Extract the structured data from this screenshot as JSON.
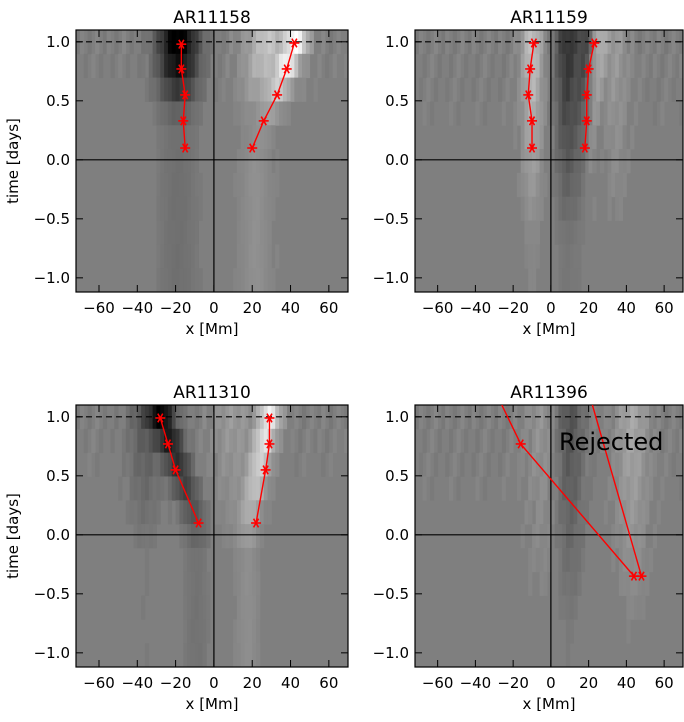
{
  "chart_data": [
    {
      "type": "scatter",
      "title": "AR11158",
      "xlabel": "x [Mm]",
      "ylabel": "time [days]",
      "xlim": [
        -72,
        70
      ],
      "ylim": [
        -1.12,
        1.1
      ],
      "xticks": [
        -60,
        -40,
        -20,
        0,
        20,
        40,
        60
      ],
      "yticks": [
        -1.0,
        -0.5,
        0.0,
        0.5,
        1.0
      ],
      "xtick_labels": [
        "−60",
        "−40",
        "−20",
        "0",
        "20",
        "40",
        "60"
      ],
      "ytick_labels": [
        "−1.0",
        "−0.5",
        "0.0",
        "0.5",
        "1.0"
      ],
      "hline_dashed": 1.0,
      "annotation": "",
      "series": [
        {
          "color": "#ff0000",
          "points": [
            [
              -15,
              0.1
            ],
            [
              -16,
              0.33
            ],
            [
              -15,
              0.55
            ],
            [
              -17,
              0.77
            ],
            [
              -17,
              0.98
            ]
          ]
        },
        {
          "color": "#ff0000",
          "points": [
            [
              20,
              0.1
            ],
            [
              26,
              0.33
            ],
            [
              33,
              0.55
            ],
            [
              38,
              0.77
            ],
            [
              42,
              0.99
            ]
          ]
        }
      ],
      "background": {
        "bands": [
          {
            "x": -17,
            "w": 7,
            "a": -0.85
          },
          {
            "x": -24,
            "w": 6,
            "a": -0.3
          },
          {
            "x": 30,
            "w": 11,
            "a": 0.3
          }
        ],
        "drift": [
          {
            "x0": 22,
            "x1": 43,
            "w": 4,
            "a": 0.85
          },
          {
            "x0": 14,
            "x1": 27,
            "w": 5,
            "a": 0.25
          }
        ],
        "fade": [
          0.25,
          0.9
        ]
      }
    },
    {
      "type": "scatter",
      "title": "AR11159",
      "xlabel": "x [Mm]",
      "ylabel": "",
      "xlim": [
        -72,
        70
      ],
      "ylim": [
        -1.12,
        1.1
      ],
      "xticks": [
        -60,
        -40,
        -20,
        0,
        20,
        40,
        60
      ],
      "yticks": [
        -1.0,
        -0.5,
        0.0,
        0.5,
        1.0
      ],
      "xtick_labels": [
        "−60",
        "−40",
        "−20",
        "0",
        "20",
        "40",
        "60"
      ],
      "ytick_labels": [
        "−1.0",
        "−0.5",
        "0.0",
        "0.5",
        "1.0"
      ],
      "hline_dashed": 1.0,
      "annotation": "",
      "series": [
        {
          "color": "#ff0000",
          "points": [
            [
              -10,
              0.1
            ],
            [
              -10,
              0.33
            ],
            [
              -12,
              0.55
            ],
            [
              -11,
              0.77
            ],
            [
              -9,
              0.99
            ]
          ]
        },
        {
          "color": "#ff0000",
          "points": [
            [
              18,
              0.1
            ],
            [
              19,
              0.33
            ],
            [
              19,
              0.55
            ],
            [
              20,
              0.77
            ],
            [
              23,
              0.99
            ]
          ]
        }
      ],
      "background": {
        "bands": [
          {
            "x": -10,
            "w": 4,
            "a": 0.5
          },
          {
            "x": 8,
            "w": 4,
            "a": -0.55
          },
          {
            "x": 19,
            "w": 5,
            "a": -0.45
          },
          {
            "x": 34,
            "w": 5,
            "a": 0.2
          }
        ],
        "drift": [
          {
            "x0": 21,
            "x1": 25,
            "w": 3,
            "a": 0.55
          }
        ],
        "fade": [
          -0.9,
          0.9
        ]
      }
    },
    {
      "type": "scatter",
      "title": "AR11310",
      "xlabel": "x [Mm]",
      "ylabel": "time [days]",
      "xlim": [
        -72,
        70
      ],
      "ylim": [
        -1.12,
        1.1
      ],
      "xticks": [
        -60,
        -40,
        -20,
        0,
        20,
        40,
        60
      ],
      "yticks": [
        -1.0,
        -0.5,
        0.0,
        0.5,
        1.0
      ],
      "xtick_labels": [
        "−60",
        "−40",
        "−20",
        "0",
        "20",
        "40",
        "60"
      ],
      "ytick_labels": [
        "−1.0",
        "−0.5",
        "0.0",
        "0.5",
        "1.0"
      ],
      "hline_dashed": 1.0,
      "annotation": "",
      "series": [
        {
          "color": "#ff0000",
          "points": [
            [
              -8,
              0.1
            ],
            [
              -20,
              0.55
            ],
            [
              -24,
              0.77
            ],
            [
              -28,
              0.99
            ]
          ]
        },
        {
          "color": "#ff0000",
          "points": [
            [
              22,
              0.1
            ],
            [
              27,
              0.55
            ],
            [
              29,
              0.77
            ],
            [
              29,
              0.99
            ]
          ]
        }
      ],
      "background": {
        "bands": [
          {
            "x": -36,
            "w": 6,
            "a": -0.3
          },
          {
            "x": 10,
            "w": 8,
            "a": 0.2
          }
        ],
        "drift": [
          {
            "x0": -9,
            "x1": -27,
            "w": 5,
            "a": -0.85
          },
          {
            "x0": 18,
            "x1": 29,
            "w": 4,
            "a": 0.85
          }
        ],
        "fade": [
          -0.3,
          0.95
        ]
      }
    },
    {
      "type": "scatter",
      "title": "AR11396",
      "xlabel": "x [Mm]",
      "ylabel": "",
      "xlim": [
        -72,
        70
      ],
      "ylim": [
        -1.12,
        1.1
      ],
      "xticks": [
        -60,
        -40,
        -20,
        0,
        20,
        40,
        60
      ],
      "yticks": [
        -1.0,
        -0.5,
        0.0,
        0.5,
        1.0
      ],
      "xtick_labels": [
        "−60",
        "−40",
        "−20",
        "0",
        "20",
        "40",
        "60"
      ],
      "ytick_labels": [
        "−1.0",
        "−0.5",
        "0.0",
        "0.5",
        "1.0"
      ],
      "hline_dashed": 1.0,
      "annotation": "Rejected",
      "series": [
        {
          "color": "#ff0000",
          "points": [
            [
              -26,
              1.1
            ],
            [
              -16,
              0.77
            ],
            [
              44,
              -0.35
            ]
          ]
        },
        {
          "color": "#ff0000",
          "points": [
            [
              22,
              1.1
            ],
            [
              48,
              -0.35
            ]
          ]
        }
      ],
      "background": {
        "bands": [
          {
            "x": 10,
            "w": 5,
            "a": -0.35
          },
          {
            "x": 43,
            "w": 6,
            "a": 0.3
          },
          {
            "x": -5,
            "w": 6,
            "a": 0.15
          }
        ],
        "drift": [],
        "fade": [
          -1.0,
          0.9
        ]
      }
    }
  ]
}
